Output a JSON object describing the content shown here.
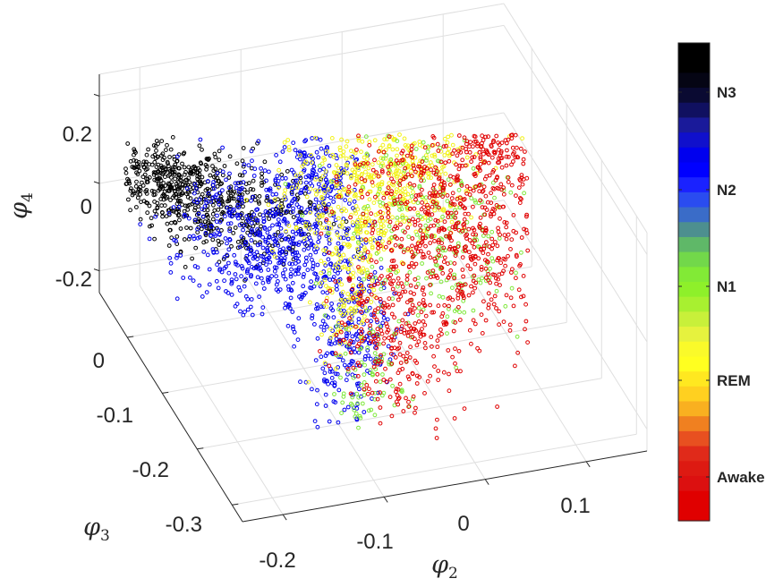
{
  "chart_data": {
    "type": "scatter",
    "dimensions": 3,
    "axes": {
      "x": {
        "label": "φ",
        "label_sub": "2",
        "ticks": [
          -0.2,
          -0.1,
          0,
          0.1
        ],
        "tick_labels": [
          "-0.2",
          "-0.1",
          "0",
          "0.1"
        ],
        "range": [
          -0.24,
          0.16
        ]
      },
      "y": {
        "label": "φ",
        "label_sub": "3",
        "ticks": [
          -0.3,
          -0.2,
          -0.1,
          0
        ],
        "tick_labels": [
          "-0.3",
          "-0.2",
          "-0.1",
          "0"
        ],
        "range": [
          -0.33,
          0.08
        ]
      },
      "z": {
        "label": "φ",
        "label_sub": "4",
        "ticks": [
          -0.2,
          0,
          0.2
        ],
        "tick_labels": [
          "-0.2",
          "0",
          "0.2"
        ],
        "range": [
          -0.25,
          0.25
        ]
      }
    },
    "grid": true,
    "marker": "open-circle",
    "series": [
      {
        "name": "N3",
        "color": "#000000",
        "cluster": {
          "x": [
            -0.22,
            -0.1
          ],
          "y": [
            0.02,
            0.08
          ],
          "z": [
            -0.12,
            0.22
          ]
        }
      },
      {
        "name": "N2",
        "color": "#0000ee",
        "cluster": {
          "x": [
            -0.2,
            -0.04
          ],
          "y": [
            -0.2,
            0.05
          ],
          "z": [
            -0.15,
            0.2
          ]
        }
      },
      {
        "name": "REM",
        "color": "#f2f21a",
        "cluster": {
          "x": [
            -0.1,
            0.04
          ],
          "y": [
            -0.2,
            0.05
          ],
          "z": [
            -0.05,
            0.22
          ]
        }
      },
      {
        "name": "N1",
        "color": "#7fe83a",
        "cluster": {
          "x": [
            -0.05,
            0.1
          ],
          "y": [
            -0.25,
            0.05
          ],
          "z": [
            -0.1,
            0.2
          ]
        }
      },
      {
        "name": "Awake",
        "color": "#e00000",
        "cluster": {
          "x": [
            -0.04,
            0.14
          ],
          "y": [
            -0.28,
            0.06
          ],
          "z": [
            -0.15,
            0.22
          ]
        }
      }
    ],
    "colorbar": {
      "labels": [
        "N3",
        "N2",
        "N1",
        "REM",
        "Awake"
      ],
      "colors_top_to_bottom": [
        "#000000",
        "#000000",
        "#050514",
        "#0a0a32",
        "#101060",
        "#1a1a9a",
        "#1010cc",
        "#0000ee",
        "#0000ff",
        "#1a22ff",
        "#2a4cf0",
        "#3a6cc8",
        "#4d8f8f",
        "#5fb868",
        "#72d84a",
        "#82ea36",
        "#8ef02a",
        "#a8f030",
        "#c8f03a",
        "#e6f23e",
        "#fafa2a",
        "#ffff20",
        "#ffe820",
        "#ffd020",
        "#f9b020",
        "#f08020",
        "#e85020",
        "#e02a1a",
        "#dd1a12",
        "#dc1010",
        "#e00000",
        "#e00000"
      ]
    }
  }
}
